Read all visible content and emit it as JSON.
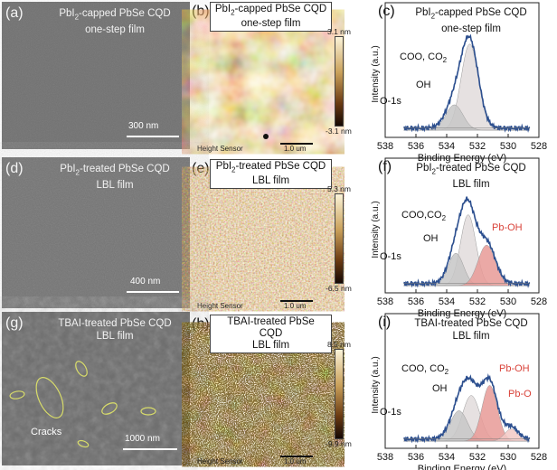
{
  "panels": {
    "a": {
      "label": "(a)",
      "title1": "PbI",
      "title1_sub": "2",
      "title1_rest": "-capped PbSe CQD",
      "title2": "one-step film",
      "scale": "300 nm"
    },
    "b": {
      "label": "(b)",
      "title1": "PbI",
      "title1_sub": "2",
      "title1_rest": "-capped PbSe CQD",
      "title2": "one-step film",
      "cbar_top": "3.1 nm",
      "cbar_bottom": "-3.1 nm",
      "sensor": "Height Sensor",
      "scale": "1.0 um"
    },
    "c": {
      "label": "(c)",
      "title1": "PbI",
      "title1_sub": "2",
      "title1_rest": "-capped PbSe CQD",
      "title2": "one-step film",
      "peaks": [
        "COO, CO",
        "OH",
        "O-1s"
      ],
      "co2_sub": "2"
    },
    "d": {
      "label": "(d)",
      "title1": "PbI",
      "title1_sub": "2",
      "title1_rest": "-treated PbSe  CQD",
      "title2": "LBL film",
      "scale": "400 nm"
    },
    "e": {
      "label": "(e)",
      "title1": "PbI",
      "title1_sub": "2",
      "title1_rest": "-treated PbSe  CQD",
      "title2": "LBL film",
      "cbar_top": "5.3 nm",
      "cbar_bottom": "-6.5 nm",
      "sensor": "Height Sensor",
      "scale": "1.0 um"
    },
    "f": {
      "label": "(f)",
      "title1": "PbI",
      "title1_sub": "2",
      "title1_rest": "-treated PbSe CQD",
      "title2": "LBL film",
      "peaks": [
        "COO,CO",
        "OH",
        "Pb-OH",
        "O-1s"
      ],
      "co2_sub": "2"
    },
    "g": {
      "label": "(g)",
      "title1": "TBAI-treated PbSe CQD",
      "title2": "LBL film",
      "cracks": "Cracks",
      "scale": "1000 nm"
    },
    "h": {
      "label": "(h)",
      "title1": "TBAI-treated PbSe CQD",
      "title2": "LBL film",
      "cbar_top": "8.5 nm",
      "cbar_bottom": "-9.9 nm",
      "sensor": "Height Sensor",
      "scale": "1.0 um"
    },
    "i": {
      "label": "(i)",
      "title1": "TBAI-treated PbSe CQD",
      "title2": "LBL film",
      "peaks": [
        "COO, CO",
        "OH",
        "Pb-OH",
        "Pb-O",
        "O-1s"
      ],
      "co2_sub": "2"
    }
  },
  "axes": {
    "ylabel": "Intensity (a.u.)",
    "xlabel": "Binding Energy (eV)",
    "xticks": [
      "538",
      "536",
      "534",
      "532",
      "530",
      "528"
    ]
  },
  "colors": {
    "fit_line": "#2c4f8f",
    "oh_fill": "#c7c7c7",
    "coo_fill": "#e2dcdc",
    "pboh_fill": "#e79a97",
    "pbo_fill": "#f3c9c6",
    "red_label": "#d9433a",
    "crack": "#d8dc6a"
  },
  "chart_data": [
    {
      "type": "area",
      "panel": "c",
      "title": "PbI2-capped PbSe CQD one-step film",
      "xlabel": "Binding Energy (eV)",
      "ylabel": "Intensity (a.u.)",
      "xlim": [
        538,
        528
      ],
      "series": [
        {
          "name": "COO, CO2",
          "center": 532.5,
          "height": 0.85,
          "width": 0.9
        },
        {
          "name": "OH",
          "center": 533.5,
          "height": 0.25,
          "width": 0.9
        }
      ]
    },
    {
      "type": "area",
      "panel": "f",
      "title": "PbI2-treated PbSe CQD LBL film",
      "xlabel": "Binding Energy (eV)",
      "ylabel": "Intensity (a.u.)",
      "xlim": [
        538,
        528
      ],
      "series": [
        {
          "name": "COO,CO2",
          "center": 532.6,
          "height": 0.7,
          "width": 0.8
        },
        {
          "name": "OH",
          "center": 533.4,
          "height": 0.32,
          "width": 0.8
        },
        {
          "name": "Pb-OH",
          "center": 531.4,
          "height": 0.4,
          "width": 0.9
        }
      ]
    },
    {
      "type": "area",
      "panel": "i",
      "title": "TBAI-treated PbSe CQD LBL film",
      "xlabel": "Binding Energy (eV)",
      "ylabel": "Intensity (a.u.)",
      "xlim": [
        538,
        528
      ],
      "series": [
        {
          "name": "COO, CO2",
          "center": 532.4,
          "height": 0.45,
          "width": 0.9
        },
        {
          "name": "OH",
          "center": 533.2,
          "height": 0.3,
          "width": 0.9
        },
        {
          "name": "Pb-OH",
          "center": 531.2,
          "height": 0.55,
          "width": 0.8
        },
        {
          "name": "Pb-O",
          "center": 529.8,
          "height": 0.12,
          "width": 0.7
        }
      ]
    }
  ]
}
